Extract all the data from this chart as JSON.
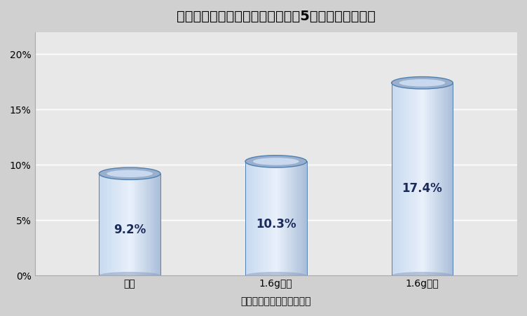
{
  "title": "塩酸リトドリン累積使用量による5歳時の喘息有症率",
  "xlabel": "累積塩酸リトドリン使用量",
  "categories": [
    "なし",
    "1.6g未満",
    "1.6g以上"
  ],
  "values": [
    9.2,
    10.3,
    17.4
  ],
  "labels": [
    "9.2%",
    "10.3%",
    "17.4%"
  ],
  "ylim": [
    0,
    22
  ],
  "yticks": [
    0,
    5,
    10,
    15,
    20
  ],
  "ytick_labels": [
    "0%",
    "5%",
    "10%",
    "15%",
    "20%"
  ],
  "bg_color": "#d0d0d0",
  "plot_bg_color": "#e8e8e8",
  "cyl_left_color": "#c8daf0",
  "cyl_center_color": "#e8f0fa",
  "cyl_right_color": "#a8bcd8",
  "cyl_top_outer": "#9aafcc",
  "cyl_top_inner": "#c8d8ee",
  "cyl_border": "#5080b0",
  "cyl_base_shadow": "#8899bb",
  "label_color": "#1a2a5a",
  "title_fontsize": 14,
  "label_fontsize": 12,
  "xlabel_fontsize": 10,
  "tick_fontsize": 10,
  "bar_width": 0.42,
  "positions": [
    1,
    2,
    3
  ]
}
